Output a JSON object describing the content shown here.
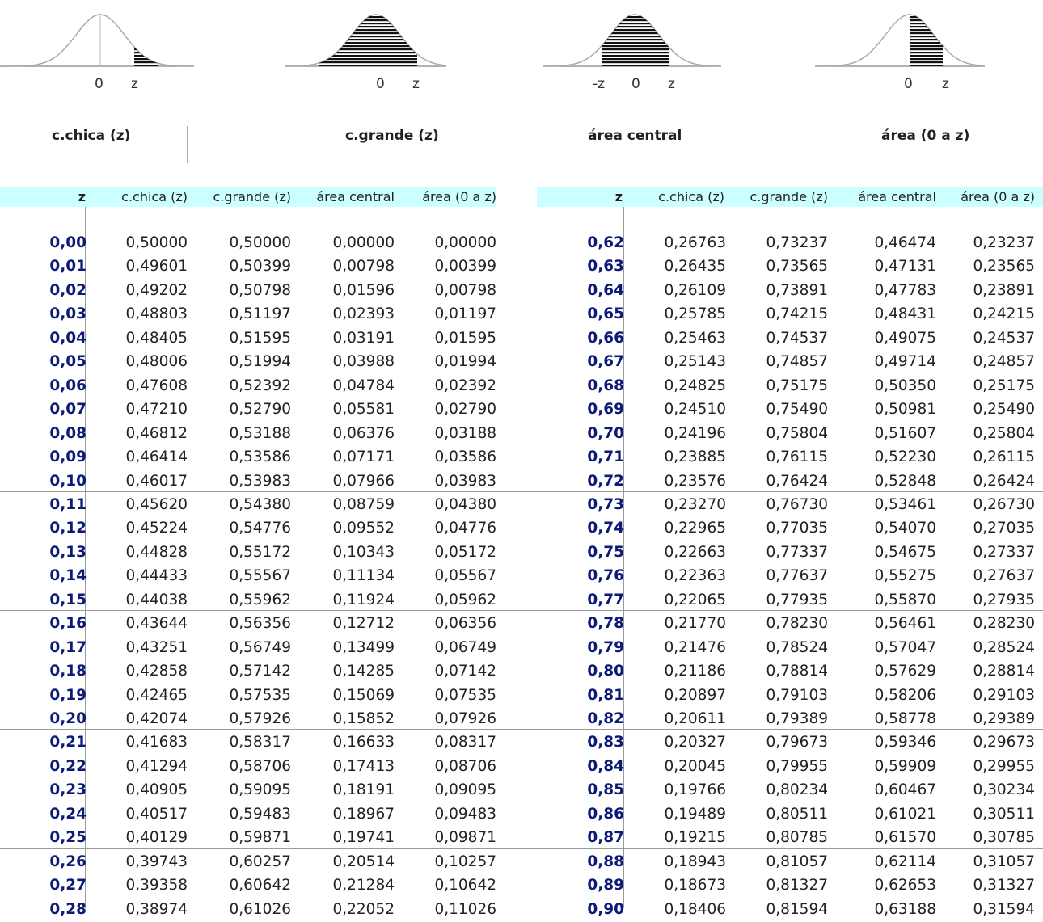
{
  "curves": [
    {
      "name": "c-chica",
      "shade": "right-tail",
      "labels": [
        "0",
        "z"
      ]
    },
    {
      "name": "c-grande",
      "shade": "left-to-z",
      "labels": [
        "0",
        "z"
      ]
    },
    {
      "name": "area-central",
      "shade": "central",
      "labels": [
        "-z",
        "0",
        "z"
      ]
    },
    {
      "name": "area-0-z",
      "shade": "zero-to-z",
      "labels": [
        "0",
        "z"
      ]
    }
  ],
  "captions": {
    "c1": "c.chica (z)",
    "c2": "c.grande (z)",
    "c3": "área central",
    "c4": "área (0 a z)"
  },
  "table_header": {
    "z": "z",
    "cchica": "c.chica (z)",
    "cgrande": "c.grande (z)",
    "central": "área central",
    "area": "área (0 a z)"
  },
  "colors": {
    "header_bg": "#ccffff",
    "z_color": "#0d1a7a",
    "grid": "#9a9a9a"
  },
  "left_rows": [
    [
      "0,00",
      "0,50000",
      "0,50000",
      "0,00000",
      "0,00000"
    ],
    [
      "0,01",
      "0,49601",
      "0,50399",
      "0,00798",
      "0,00399"
    ],
    [
      "0,02",
      "0,49202",
      "0,50798",
      "0,01596",
      "0,00798"
    ],
    [
      "0,03",
      "0,48803",
      "0,51197",
      "0,02393",
      "0,01197"
    ],
    [
      "0,04",
      "0,48405",
      "0,51595",
      "0,03191",
      "0,01595"
    ],
    [
      "0,05",
      "0,48006",
      "0,51994",
      "0,03988",
      "0,01994"
    ],
    [
      "0,06",
      "0,47608",
      "0,52392",
      "0,04784",
      "0,02392"
    ],
    [
      "0,07",
      "0,47210",
      "0,52790",
      "0,05581",
      "0,02790"
    ],
    [
      "0,08",
      "0,46812",
      "0,53188",
      "0,06376",
      "0,03188"
    ],
    [
      "0,09",
      "0,46414",
      "0,53586",
      "0,07171",
      "0,03586"
    ],
    [
      "0,10",
      "0,46017",
      "0,53983",
      "0,07966",
      "0,03983"
    ],
    [
      "0,11",
      "0,45620",
      "0,54380",
      "0,08759",
      "0,04380"
    ],
    [
      "0,12",
      "0,45224",
      "0,54776",
      "0,09552",
      "0,04776"
    ],
    [
      "0,13",
      "0,44828",
      "0,55172",
      "0,10343",
      "0,05172"
    ],
    [
      "0,14",
      "0,44433",
      "0,55567",
      "0,11134",
      "0,05567"
    ],
    [
      "0,15",
      "0,44038",
      "0,55962",
      "0,11924",
      "0,05962"
    ],
    [
      "0,16",
      "0,43644",
      "0,56356",
      "0,12712",
      "0,06356"
    ],
    [
      "0,17",
      "0,43251",
      "0,56749",
      "0,13499",
      "0,06749"
    ],
    [
      "0,18",
      "0,42858",
      "0,57142",
      "0,14285",
      "0,07142"
    ],
    [
      "0,19",
      "0,42465",
      "0,57535",
      "0,15069",
      "0,07535"
    ],
    [
      "0,20",
      "0,42074",
      "0,57926",
      "0,15852",
      "0,07926"
    ],
    [
      "0,21",
      "0,41683",
      "0,58317",
      "0,16633",
      "0,08317"
    ],
    [
      "0,22",
      "0,41294",
      "0,58706",
      "0,17413",
      "0,08706"
    ],
    [
      "0,23",
      "0,40905",
      "0,59095",
      "0,18191",
      "0,09095"
    ],
    [
      "0,24",
      "0,40517",
      "0,59483",
      "0,18967",
      "0,09483"
    ],
    [
      "0,25",
      "0,40129",
      "0,59871",
      "0,19741",
      "0,09871"
    ],
    [
      "0,26",
      "0,39743",
      "0,60257",
      "0,20514",
      "0,10257"
    ],
    [
      "0,27",
      "0,39358",
      "0,60642",
      "0,21284",
      "0,10642"
    ],
    [
      "0,28",
      "0,38974",
      "0,61026",
      "0,22052",
      "0,11026"
    ]
  ],
  "right_rows": [
    [
      "0,62",
      "0,26763",
      "0,73237",
      "0,46474",
      "0,23237"
    ],
    [
      "0,63",
      "0,26435",
      "0,73565",
      "0,47131",
      "0,23565"
    ],
    [
      "0,64",
      "0,26109",
      "0,73891",
      "0,47783",
      "0,23891"
    ],
    [
      "0,65",
      "0,25785",
      "0,74215",
      "0,48431",
      "0,24215"
    ],
    [
      "0,66",
      "0,25463",
      "0,74537",
      "0,49075",
      "0,24537"
    ],
    [
      "0,67",
      "0,25143",
      "0,74857",
      "0,49714",
      "0,24857"
    ],
    [
      "0,68",
      "0,24825",
      "0,75175",
      "0,50350",
      "0,25175"
    ],
    [
      "0,69",
      "0,24510",
      "0,75490",
      "0,50981",
      "0,25490"
    ],
    [
      "0,70",
      "0,24196",
      "0,75804",
      "0,51607",
      "0,25804"
    ],
    [
      "0,71",
      "0,23885",
      "0,76115",
      "0,52230",
      "0,26115"
    ],
    [
      "0,72",
      "0,23576",
      "0,76424",
      "0,52848",
      "0,26424"
    ],
    [
      "0,73",
      "0,23270",
      "0,76730",
      "0,53461",
      "0,26730"
    ],
    [
      "0,74",
      "0,22965",
      "0,77035",
      "0,54070",
      "0,27035"
    ],
    [
      "0,75",
      "0,22663",
      "0,77337",
      "0,54675",
      "0,27337"
    ],
    [
      "0,76",
      "0,22363",
      "0,77637",
      "0,55275",
      "0,27637"
    ],
    [
      "0,77",
      "0,22065",
      "0,77935",
      "0,55870",
      "0,27935"
    ],
    [
      "0,78",
      "0,21770",
      "0,78230",
      "0,56461",
      "0,28230"
    ],
    [
      "0,79",
      "0,21476",
      "0,78524",
      "0,57047",
      "0,28524"
    ],
    [
      "0,80",
      "0,21186",
      "0,78814",
      "0,57629",
      "0,28814"
    ],
    [
      "0,81",
      "0,20897",
      "0,79103",
      "0,58206",
      "0,29103"
    ],
    [
      "0,82",
      "0,20611",
      "0,79389",
      "0,58778",
      "0,29389"
    ],
    [
      "0,83",
      "0,20327",
      "0,79673",
      "0,59346",
      "0,29673"
    ],
    [
      "0,84",
      "0,20045",
      "0,79955",
      "0,59909",
      "0,29955"
    ],
    [
      "0,85",
      "0,19766",
      "0,80234",
      "0,60467",
      "0,30234"
    ],
    [
      "0,86",
      "0,19489",
      "0,80511",
      "0,61021",
      "0,30511"
    ],
    [
      "0,87",
      "0,19215",
      "0,80785",
      "0,61570",
      "0,30785"
    ],
    [
      "0,88",
      "0,18943",
      "0,81057",
      "0,62114",
      "0,31057"
    ],
    [
      "0,89",
      "0,18673",
      "0,81327",
      "0,62653",
      "0,31327"
    ],
    [
      "0,90",
      "0,18406",
      "0,81594",
      "0,63188",
      "0,31594"
    ]
  ]
}
